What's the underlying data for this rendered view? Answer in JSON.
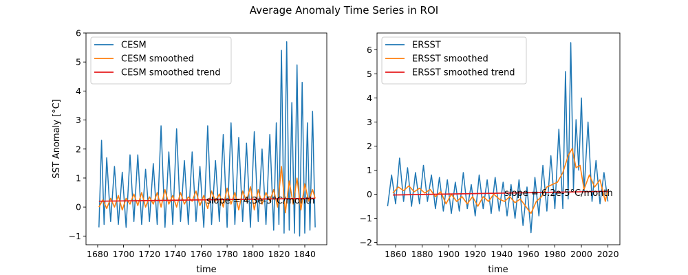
{
  "figure": {
    "title": "Average Anomaly Time Series in ROI"
  },
  "colors": {
    "raw": "#1f77b4",
    "smoothed": "#ff7f0e",
    "trend": "#e41a1c"
  },
  "chart_data": [
    {
      "type": "line",
      "title": "",
      "xlabel": "time",
      "ylabel": "SST Anomaly [°C]",
      "xlim": [
        1671,
        1857
      ],
      "ylim": [
        -1.3,
        6.0
      ],
      "xticks": [
        1680,
        1700,
        1720,
        1740,
        1760,
        1780,
        1800,
        1820,
        1840
      ],
      "yticks": [
        -1,
        0,
        1,
        2,
        3,
        4,
        5,
        6
      ],
      "legend": {
        "placement": "top-left",
        "entries": [
          "CESM",
          "CESM smoothed",
          "CESM smoothed trend"
        ]
      },
      "annotation": {
        "text": "slope = 4.3e-5°C/month",
        "x": 1764,
        "y": 0.22
      },
      "series": [
        {
          "name": "CESM",
          "color": "#1f77b4",
          "x": [
            1681,
            1683,
            1685,
            1687,
            1690,
            1693,
            1696,
            1699,
            1702,
            1705,
            1708,
            1711,
            1714,
            1717,
            1720,
            1723,
            1726,
            1729,
            1732,
            1735,
            1738,
            1741,
            1744,
            1747,
            1750,
            1753,
            1756,
            1759,
            1762,
            1765,
            1768,
            1771,
            1774,
            1777,
            1780,
            1783,
            1786,
            1789,
            1792,
            1795,
            1798,
            1801,
            1804,
            1807,
            1810,
            1813,
            1816,
            1818,
            1820,
            1822,
            1824,
            1826,
            1828,
            1830,
            1832,
            1834,
            1836,
            1838,
            1840,
            1842,
            1844,
            1846,
            1848
          ],
          "y": [
            -0.7,
            2.3,
            -0.6,
            1.7,
            -0.5,
            1.4,
            -0.6,
            1.2,
            -0.7,
            1.8,
            -0.5,
            1.8,
            -0.6,
            1.3,
            -0.5,
            1.5,
            -0.6,
            2.8,
            -0.7,
            1.9,
            -0.6,
            2.7,
            -0.5,
            1.6,
            -0.6,
            1.9,
            -0.5,
            1.4,
            -0.7,
            2.8,
            -0.6,
            1.6,
            -0.5,
            2.5,
            -0.7,
            2.9,
            -0.6,
            2.4,
            -0.5,
            2.2,
            -0.7,
            2.6,
            -0.5,
            2.0,
            -0.6,
            2.5,
            -0.8,
            2.9,
            -0.6,
            5.4,
            -0.9,
            5.7,
            -0.8,
            3.6,
            -0.9,
            4.9,
            -1.0,
            4.3,
            -0.9,
            2.9,
            -0.8,
            3.3,
            -0.7
          ]
        },
        {
          "name": "CESM smoothed",
          "color": "#ff7f0e",
          "x": [
            1681,
            1684,
            1687,
            1690,
            1693,
            1696,
            1699,
            1702,
            1705,
            1708,
            1711,
            1714,
            1717,
            1720,
            1723,
            1726,
            1729,
            1732,
            1735,
            1738,
            1741,
            1744,
            1747,
            1750,
            1753,
            1756,
            1759,
            1762,
            1765,
            1768,
            1771,
            1774,
            1777,
            1780,
            1783,
            1786,
            1789,
            1792,
            1795,
            1798,
            1801,
            1804,
            1807,
            1810,
            1813,
            1816,
            1819,
            1822,
            1825,
            1828,
            1831,
            1834,
            1837,
            1840,
            1843,
            1846,
            1848
          ],
          "y": [
            0.0,
            0.25,
            -0.05,
            0.3,
            0.0,
            0.4,
            -0.1,
            0.3,
            0.1,
            0.45,
            0.05,
            0.5,
            0.0,
            0.35,
            0.1,
            0.5,
            0.0,
            0.6,
            0.1,
            0.4,
            0.0,
            0.5,
            0.1,
            0.35,
            0.2,
            0.55,
            0.05,
            0.4,
            -0.05,
            0.55,
            0.2,
            0.45,
            0.0,
            0.65,
            0.1,
            0.5,
            -0.1,
            0.55,
            0.2,
            0.7,
            -0.1,
            0.6,
            0.1,
            0.5,
            0.2,
            0.6,
            0.0,
            1.4,
            -0.2,
            0.9,
            0.1,
            1.0,
            -0.1,
            0.8,
            0.2,
            0.6,
            0.3
          ]
        },
        {
          "name": "CESM smoothed trend",
          "color": "#e41a1c",
          "x": [
            1681,
            1848
          ],
          "y": [
            0.2,
            0.3
          ]
        }
      ]
    },
    {
      "type": "line",
      "title": "",
      "xlabel": "time",
      "ylabel": "",
      "xlim": [
        1846,
        2029
      ],
      "ylim": [
        -2.1,
        6.7
      ],
      "xticks": [
        1860,
        1880,
        1900,
        1920,
        1940,
        1960,
        1980,
        2000,
        2020
      ],
      "yticks": [
        -2,
        -1,
        0,
        1,
        2,
        3,
        4,
        5,
        6
      ],
      "legend": {
        "placement": "top-left",
        "entries": [
          "ERSST",
          "ERSST smoothed",
          "ERSST smoothed trend"
        ]
      },
      "annotation": {
        "text": "slope = 6.2e-5°C/month",
        "x": 1942,
        "y": 0.05
      },
      "series": [
        {
          "name": "ERSST",
          "color": "#1f77b4",
          "x": [
            1854,
            1857,
            1860,
            1863,
            1866,
            1869,
            1872,
            1875,
            1878,
            1881,
            1884,
            1887,
            1890,
            1893,
            1896,
            1899,
            1902,
            1905,
            1908,
            1911,
            1914,
            1917,
            1920,
            1923,
            1926,
            1929,
            1932,
            1935,
            1938,
            1941,
            1944,
            1947,
            1950,
            1953,
            1956,
            1959,
            1962,
            1965,
            1968,
            1971,
            1974,
            1977,
            1980,
            1983,
            1986,
            1988,
            1990,
            1992,
            1994,
            1996,
            1998,
            2000,
            2002,
            2005,
            2008,
            2011,
            2014,
            2017,
            2020
          ],
          "y": [
            -0.5,
            0.8,
            -0.4,
            1.5,
            -0.3,
            1.1,
            -0.5,
            0.9,
            -0.4,
            1.2,
            -0.3,
            0.8,
            -0.6,
            0.7,
            -0.7,
            0.6,
            -0.8,
            0.5,
            -0.7,
            0.9,
            -0.6,
            0.4,
            -0.9,
            0.8,
            -0.6,
            0.6,
            -0.8,
            0.7,
            -0.7,
            0.5,
            -0.9,
            0.4,
            -1.0,
            0.6,
            -1.3,
            0.3,
            -1.6,
            0.7,
            -0.9,
            1.2,
            -0.7,
            1.6,
            -0.6,
            2.7,
            -0.6,
            5.1,
            -0.2,
            6.3,
            0.2,
            3.1,
            1.0,
            4.0,
            0.1,
            3.0,
            -0.3,
            1.4,
            -0.4,
            0.9,
            -0.3
          ]
        },
        {
          "name": "ERSST smoothed",
          "color": "#ff7f0e",
          "x": [
            1858,
            1862,
            1866,
            1870,
            1874,
            1878,
            1882,
            1886,
            1890,
            1894,
            1898,
            1902,
            1906,
            1910,
            1914,
            1918,
            1922,
            1926,
            1930,
            1934,
            1938,
            1942,
            1946,
            1950,
            1954,
            1958,
            1962,
            1966,
            1970,
            1974,
            1978,
            1982,
            1986,
            1990,
            1993,
            1996,
            1999,
            2002,
            2006,
            2010,
            2014,
            2018,
            2020
          ],
          "y": [
            0.05,
            0.3,
            0.15,
            0.35,
            0.1,
            0.25,
            0.05,
            0.2,
            -0.1,
            0.1,
            -0.4,
            0.0,
            -0.3,
            -0.1,
            -0.4,
            -0.1,
            -0.5,
            -0.1,
            -0.3,
            0.0,
            -0.2,
            -0.3,
            -0.1,
            -0.35,
            -0.2,
            -0.5,
            -0.8,
            -0.3,
            -0.1,
            0.3,
            0.4,
            0.5,
            0.9,
            1.6,
            1.9,
            1.1,
            1.2,
            0.2,
            0.8,
            0.3,
            0.6,
            -0.3,
            0.2
          ]
        },
        {
          "name": "ERSST smoothed trend",
          "color": "#e41a1c",
          "x": [
            1858,
            2020
          ],
          "y": [
            -0.03,
            0.12
          ]
        }
      ]
    }
  ]
}
